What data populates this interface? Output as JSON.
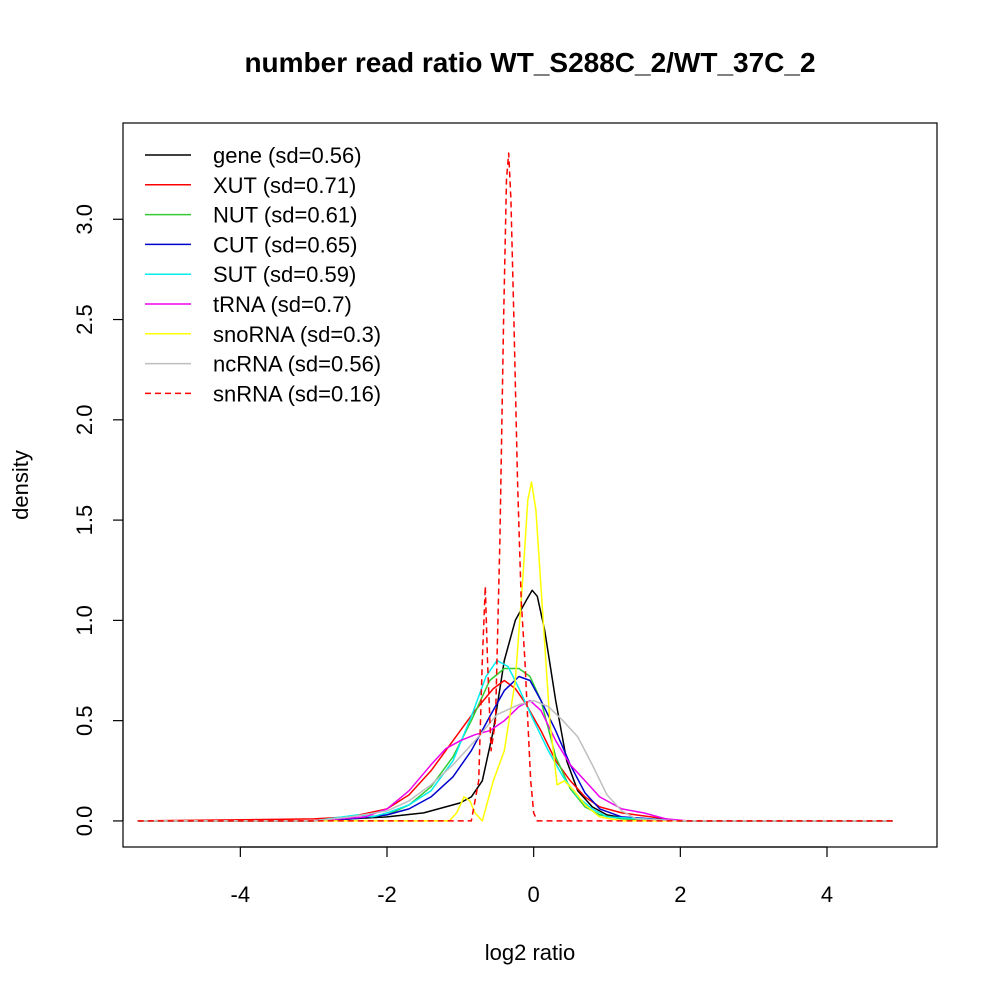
{
  "chart_data": {
    "type": "line",
    "title": "number read ratio WT_S288C_2/WT_37C_2",
    "xlabel": "log2 ratio",
    "ylabel": "density",
    "xlim": [
      -5.6,
      5.5
    ],
    "ylim": [
      -0.13,
      3.48
    ],
    "x_ticks": [
      -4,
      -2,
      0,
      2,
      4
    ],
    "x_tick_labels": [
      "-4",
      "-2",
      "0",
      "2",
      "4"
    ],
    "y_ticks": [
      0.0,
      0.5,
      1.0,
      1.5,
      2.0,
      2.5,
      3.0
    ],
    "y_tick_labels": [
      "0.0",
      "0.5",
      "1.0",
      "1.5",
      "2.0",
      "2.5",
      "3.0"
    ],
    "grid": false,
    "legend_position": "top-left",
    "series": [
      {
        "name": "gene (sd=0.56)",
        "color": "#000000",
        "dash": false,
        "points": [
          [
            -5.4,
            0
          ],
          [
            -3.0,
            0.0
          ],
          [
            -2.0,
            0.02
          ],
          [
            -1.5,
            0.04
          ],
          [
            -1.2,
            0.07
          ],
          [
            -1.0,
            0.09
          ],
          [
            -0.85,
            0.12
          ],
          [
            -0.7,
            0.2
          ],
          [
            -0.55,
            0.45
          ],
          [
            -0.4,
            0.8
          ],
          [
            -0.25,
            1.0
          ],
          [
            -0.1,
            1.1
          ],
          [
            -0.02,
            1.15
          ],
          [
            0.05,
            1.12
          ],
          [
            0.15,
            0.95
          ],
          [
            0.3,
            0.6
          ],
          [
            0.45,
            0.3
          ],
          [
            0.6,
            0.15
          ],
          [
            0.8,
            0.07
          ],
          [
            1.0,
            0.03
          ],
          [
            1.3,
            0.01
          ],
          [
            2.0,
            0.0
          ],
          [
            4.9,
            0
          ]
        ]
      },
      {
        "name": "XUT (sd=0.71)",
        "color": "#ff0000",
        "dash": false,
        "points": [
          [
            -5.4,
            0
          ],
          [
            -3.0,
            0.01
          ],
          [
            -2.5,
            0.02
          ],
          [
            -2.0,
            0.06
          ],
          [
            -1.7,
            0.13
          ],
          [
            -1.4,
            0.25
          ],
          [
            -1.1,
            0.4
          ],
          [
            -0.8,
            0.55
          ],
          [
            -0.55,
            0.66
          ],
          [
            -0.4,
            0.7
          ],
          [
            -0.25,
            0.66
          ],
          [
            -0.1,
            0.58
          ],
          [
            0.1,
            0.45
          ],
          [
            0.3,
            0.3
          ],
          [
            0.5,
            0.2
          ],
          [
            0.7,
            0.12
          ],
          [
            0.9,
            0.07
          ],
          [
            1.2,
            0.04
          ],
          [
            1.6,
            0.02
          ],
          [
            2.0,
            0.0
          ],
          [
            4.9,
            0
          ]
        ]
      },
      {
        "name": "NUT (sd=0.61)",
        "color": "#33cc33",
        "dash": false,
        "points": [
          [
            -5.4,
            0
          ],
          [
            -3.0,
            0.0
          ],
          [
            -2.5,
            0.01
          ],
          [
            -2.0,
            0.03
          ],
          [
            -1.7,
            0.08
          ],
          [
            -1.4,
            0.17
          ],
          [
            -1.1,
            0.32
          ],
          [
            -0.85,
            0.5
          ],
          [
            -0.6,
            0.7
          ],
          [
            -0.4,
            0.76
          ],
          [
            -0.2,
            0.76
          ],
          [
            -0.05,
            0.72
          ],
          [
            0.1,
            0.6
          ],
          [
            0.3,
            0.32
          ],
          [
            0.5,
            0.16
          ],
          [
            0.7,
            0.07
          ],
          [
            0.9,
            0.03
          ],
          [
            1.2,
            0.01
          ],
          [
            2.0,
            0.0
          ],
          [
            4.9,
            0
          ]
        ]
      },
      {
        "name": "CUT (sd=0.65)",
        "color": "#0000cc",
        "dash": false,
        "points": [
          [
            -5.4,
            0
          ],
          [
            -3.0,
            0.0
          ],
          [
            -2.5,
            0.01
          ],
          [
            -2.0,
            0.03
          ],
          [
            -1.7,
            0.06
          ],
          [
            -1.4,
            0.12
          ],
          [
            -1.1,
            0.22
          ],
          [
            -0.85,
            0.35
          ],
          [
            -0.6,
            0.52
          ],
          [
            -0.4,
            0.65
          ],
          [
            -0.2,
            0.72
          ],
          [
            -0.05,
            0.7
          ],
          [
            0.1,
            0.6
          ],
          [
            0.3,
            0.45
          ],
          [
            0.5,
            0.28
          ],
          [
            0.7,
            0.14
          ],
          [
            0.9,
            0.06
          ],
          [
            1.2,
            0.02
          ],
          [
            2.0,
            0.0
          ],
          [
            4.9,
            0
          ]
        ]
      },
      {
        "name": "SUT (sd=0.59)",
        "color": "#00eeee",
        "dash": false,
        "points": [
          [
            -5.4,
            0
          ],
          [
            -3.0,
            0.0
          ],
          [
            -2.4,
            0.03
          ],
          [
            -2.2,
            0.02
          ],
          [
            -2.0,
            0.04
          ],
          [
            -1.7,
            0.08
          ],
          [
            -1.4,
            0.15
          ],
          [
            -1.1,
            0.3
          ],
          [
            -0.85,
            0.52
          ],
          [
            -0.65,
            0.72
          ],
          [
            -0.5,
            0.8
          ],
          [
            -0.35,
            0.77
          ],
          [
            -0.2,
            0.66
          ],
          [
            0.0,
            0.5
          ],
          [
            0.2,
            0.35
          ],
          [
            0.4,
            0.22
          ],
          [
            0.6,
            0.12
          ],
          [
            0.8,
            0.06
          ],
          [
            1.0,
            0.02
          ],
          [
            2.0,
            0.0
          ],
          [
            4.9,
            0
          ]
        ]
      },
      {
        "name": "tRNA (sd=0.7)",
        "color": "#ee00ee",
        "dash": false,
        "points": [
          [
            -5.4,
            0
          ],
          [
            -3.0,
            0.0
          ],
          [
            -2.3,
            0.02
          ],
          [
            -2.0,
            0.06
          ],
          [
            -1.7,
            0.15
          ],
          [
            -1.4,
            0.28
          ],
          [
            -1.2,
            0.36
          ],
          [
            -1.0,
            0.4
          ],
          [
            -0.8,
            0.43
          ],
          [
            -0.6,
            0.45
          ],
          [
            -0.4,
            0.5
          ],
          [
            -0.2,
            0.57
          ],
          [
            -0.05,
            0.6
          ],
          [
            0.1,
            0.55
          ],
          [
            0.3,
            0.4
          ],
          [
            0.5,
            0.28
          ],
          [
            0.7,
            0.2
          ],
          [
            0.9,
            0.12
          ],
          [
            1.2,
            0.06
          ],
          [
            1.5,
            0.04
          ],
          [
            1.8,
            0.01
          ],
          [
            2.1,
            0.0
          ],
          [
            4.9,
            0
          ]
        ]
      },
      {
        "name": "snoRNA (sd=0.3)",
        "color": "#ffff00",
        "dash": false,
        "points": [
          [
            -5.4,
            0
          ],
          [
            -1.15,
            0.0
          ],
          [
            -1.05,
            0.04
          ],
          [
            -0.95,
            0.12
          ],
          [
            -0.87,
            0.1
          ],
          [
            -0.8,
            0.04
          ],
          [
            -0.7,
            0.0
          ],
          [
            -0.55,
            0.2
          ],
          [
            -0.4,
            0.35
          ],
          [
            -0.25,
            0.7
          ],
          [
            -0.15,
            1.2
          ],
          [
            -0.08,
            1.6
          ],
          [
            -0.03,
            1.69
          ],
          [
            0.03,
            1.55
          ],
          [
            0.12,
            1.05
          ],
          [
            0.22,
            0.5
          ],
          [
            0.32,
            0.18
          ],
          [
            0.42,
            0.2
          ],
          [
            0.55,
            0.15
          ],
          [
            0.7,
            0.08
          ],
          [
            0.9,
            0.02
          ],
          [
            1.2,
            0.0
          ],
          [
            4.9,
            0
          ]
        ]
      },
      {
        "name": "ncRNA (sd=0.56)",
        "color": "#bebebe",
        "dash": false,
        "points": [
          [
            -5.4,
            0
          ],
          [
            -3.0,
            0.0
          ],
          [
            -2.5,
            0.02
          ],
          [
            -2.0,
            0.05
          ],
          [
            -1.7,
            0.1
          ],
          [
            -1.4,
            0.18
          ],
          [
            -1.1,
            0.28
          ],
          [
            -0.8,
            0.4
          ],
          [
            -0.5,
            0.53
          ],
          [
            -0.2,
            0.58
          ],
          [
            0.0,
            0.6
          ],
          [
            0.2,
            0.57
          ],
          [
            0.4,
            0.5
          ],
          [
            0.6,
            0.42
          ],
          [
            0.8,
            0.28
          ],
          [
            1.0,
            0.13
          ],
          [
            1.2,
            0.05
          ],
          [
            1.4,
            0.01
          ],
          [
            2.0,
            0.0
          ],
          [
            4.9,
            0
          ]
        ]
      },
      {
        "name": "snRNA (sd=0.16)",
        "color": "#ff0000",
        "dash": true,
        "points": [
          [
            -5.4,
            0
          ],
          [
            -0.85,
            0.0
          ],
          [
            -0.75,
            0.2
          ],
          [
            -0.7,
            0.8
          ],
          [
            -0.66,
            1.17
          ],
          [
            -0.63,
            0.8
          ],
          [
            -0.58,
            0.35
          ],
          [
            -0.52,
            0.5
          ],
          [
            -0.46,
            1.4
          ],
          [
            -0.41,
            2.5
          ],
          [
            -0.37,
            3.2
          ],
          [
            -0.34,
            3.33
          ],
          [
            -0.31,
            3.1
          ],
          [
            -0.27,
            2.5
          ],
          [
            -0.22,
            1.7
          ],
          [
            -0.17,
            1.1
          ],
          [
            -0.12,
            0.8
          ],
          [
            -0.08,
            0.5
          ],
          [
            -0.04,
            0.2
          ],
          [
            0.0,
            0.04
          ],
          [
            0.05,
            0.0
          ],
          [
            4.9,
            0
          ]
        ]
      }
    ]
  }
}
